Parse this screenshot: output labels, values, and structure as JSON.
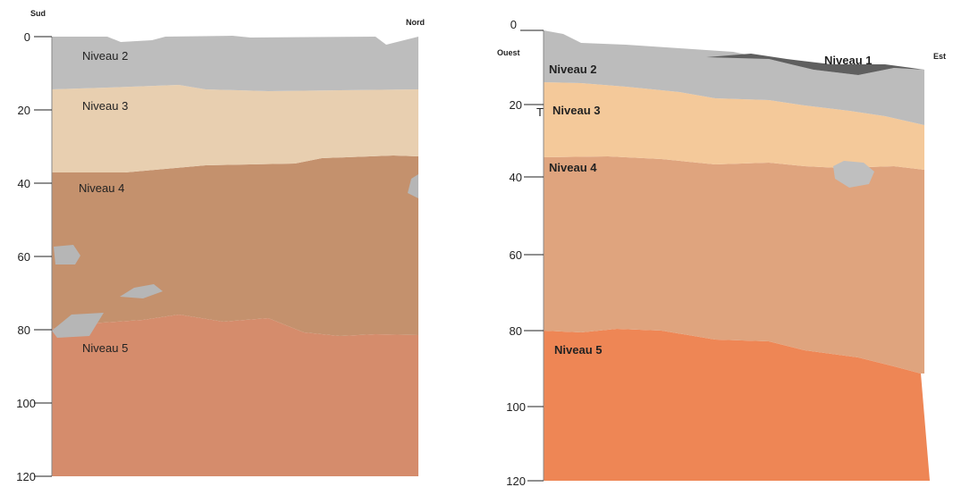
{
  "left_section": {
    "direction_start": "Sud",
    "direction_end": "Nord",
    "depth_ticks": [
      "0",
      "20",
      "40",
      "60",
      "80",
      "100",
      "120"
    ],
    "layers": [
      {
        "label": "Niveau 2",
        "color": "#bdbdbd"
      },
      {
        "label": "Niveau 3",
        "color": "#e8cfb0"
      },
      {
        "label": "Niveau 4",
        "color": "#c4916d"
      },
      {
        "label": "Niveau 5",
        "color": "#d58c6c"
      }
    ]
  },
  "right_section": {
    "direction_start": "Ouest",
    "direction_end": "Est",
    "depth_ticks": [
      "0",
      "20",
      "40",
      "60",
      "80",
      "100",
      "120"
    ],
    "layers": [
      {
        "label": "Niveau 1",
        "color": "#5f5f5f"
      },
      {
        "label": "Niveau 2",
        "color": "#bcbcbc"
      },
      {
        "label": "Niveau 3",
        "color": "#f4c99a"
      },
      {
        "label": "Niveau 4",
        "color": "#dfa47e"
      },
      {
        "label": "Niveau 5",
        "color": "#ee8655"
      }
    ]
  },
  "stray_mark": "T"
}
